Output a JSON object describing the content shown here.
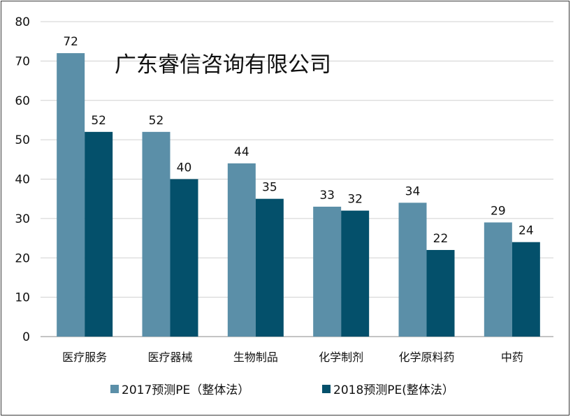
{
  "watermark": "广东睿信咨询有限公司",
  "chart_data": {
    "type": "bar",
    "title": "",
    "xlabel": "",
    "ylabel": "",
    "ylim": [
      0,
      80
    ],
    "yticks": [
      0,
      10,
      20,
      30,
      40,
      50,
      60,
      70,
      80
    ],
    "grid": true,
    "legend_position": "bottom",
    "categories": [
      "医疗服务",
      "医疗器械",
      "生物制品",
      "化学制剂",
      "化学原料药",
      "中药"
    ],
    "series": [
      {
        "name": "2017预测PE（整体法）",
        "color": "#5b8fa8",
        "values": [
          72,
          52,
          44,
          33,
          34,
          29
        ]
      },
      {
        "name": "2018预测PE(整体法）",
        "color": "#04506b",
        "values": [
          52,
          40,
          35,
          32,
          22,
          24
        ]
      }
    ]
  }
}
